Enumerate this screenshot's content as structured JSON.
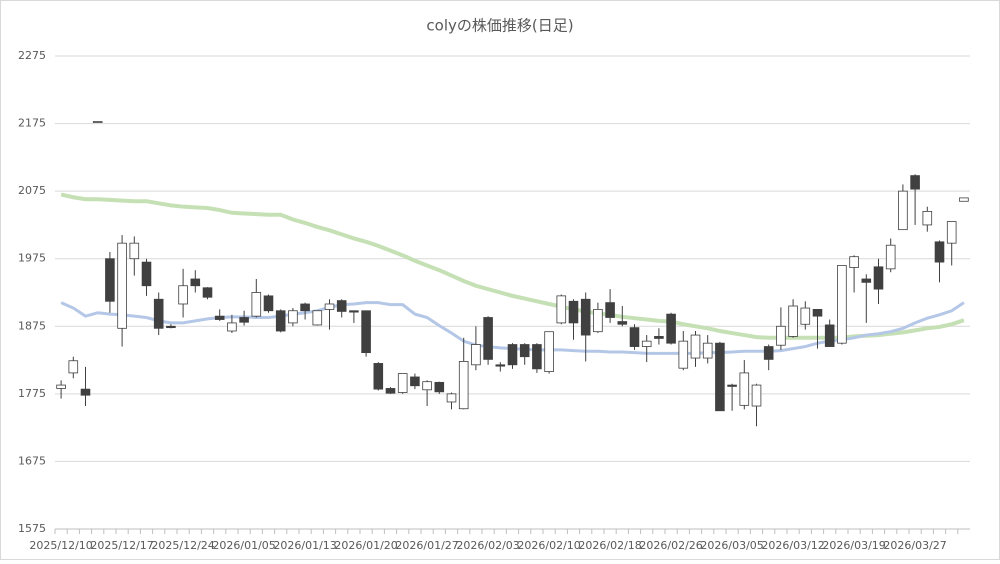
{
  "chart_data": {
    "type": "candlestick",
    "title": "colyの株価推移(日足)",
    "categories": [
      "2025/12/10",
      null,
      null,
      null,
      null,
      "2025/12/17",
      null,
      null,
      null,
      null,
      "2025/12/24",
      null,
      null,
      null,
      null,
      "2026/01/05",
      null,
      null,
      null,
      null,
      "2026/01/13",
      null,
      null,
      null,
      null,
      "2026/01/20",
      null,
      null,
      null,
      null,
      "2026/01/27",
      null,
      null,
      null,
      null,
      "2026/02/03",
      null,
      null,
      null,
      null,
      "2026/02/10",
      null,
      null,
      null,
      null,
      "2026/02/18",
      null,
      null,
      null,
      null,
      "2026/02/26",
      null,
      null,
      null,
      null,
      "2026/03/05",
      null,
      null,
      null,
      null,
      "2026/03/12",
      null,
      null,
      null,
      null,
      "2026/03/19",
      null,
      null,
      null,
      null,
      "2026/03/27",
      null,
      null,
      null,
      null
    ],
    "open": [
      1783,
      1806,
      1782,
      2178,
      1975,
      1872,
      1975,
      1970,
      1915,
      1875,
      1908,
      1945,
      1932,
      1890,
      1868,
      1888,
      1890,
      1920,
      1898,
      1880,
      1908,
      1877,
      1900,
      1913,
      1898,
      1898,
      1820,
      1783,
      1777,
      1800,
      1781,
      1792,
      1763,
      1753,
      1818,
      1888,
      1818,
      1848,
      1848,
      1848,
      1808,
      1880,
      1912,
      1915,
      1867,
      1910,
      1882,
      1873,
      1845,
      1860,
      1893,
      1813,
      1828,
      1828,
      1850,
      1788,
      1758,
      1757,
      1845,
      1847,
      1860,
      1878,
      1900,
      1877,
      1850,
      1962,
      1945,
      1963,
      1960,
      2018,
      2098,
      2025,
      2000,
      1998,
      2060
    ],
    "high": [
      1795,
      1830,
      1815,
      2178,
      1985,
      2010,
      2008,
      1975,
      1925,
      1878,
      1960,
      1958,
      1933,
      1900,
      1892,
      1898,
      1945,
      1922,
      1900,
      1902,
      1910,
      1898,
      1915,
      1915,
      1898,
      1898,
      1822,
      1785,
      1805,
      1805,
      1795,
      1793,
      1777,
      1858,
      1875,
      1890,
      1822,
      1850,
      1850,
      1850,
      1867,
      1922,
      1915,
      1925,
      1910,
      1930,
      1905,
      1878,
      1862,
      1872,
      1895,
      1868,
      1868,
      1862,
      1852,
      1790,
      1825,
      1790,
      1848,
      1903,
      1915,
      1912,
      1900,
      1885,
      1965,
      1980,
      1952,
      1975,
      2005,
      2085,
      2100,
      2052,
      2002,
      2030,
      2065
    ],
    "low": [
      1768,
      1798,
      1757,
      2178,
      1895,
      1845,
      1950,
      1920,
      1862,
      1872,
      1888,
      1925,
      1915,
      1883,
      1865,
      1876,
      1888,
      1895,
      1866,
      1875,
      1885,
      1876,
      1870,
      1888,
      1880,
      1830,
      1780,
      1775,
      1775,
      1782,
      1757,
      1775,
      1752,
      1752,
      1810,
      1818,
      1808,
      1812,
      1818,
      1806,
      1805,
      1878,
      1855,
      1823,
      1865,
      1880,
      1875,
      1840,
      1822,
      1848,
      1848,
      1810,
      1815,
      1820,
      1750,
      1750,
      1752,
      1727,
      1810,
      1840,
      1858,
      1870,
      1842,
      1845,
      1848,
      1925,
      1880,
      1908,
      1955,
      2018,
      2025,
      2015,
      1940,
      1965,
      2060
    ],
    "close": [
      1788,
      1824,
      1773,
      2178,
      1912,
      1998,
      1998,
      1935,
      1872,
      1873,
      1935,
      1935,
      1918,
      1885,
      1880,
      1881,
      1925,
      1898,
      1868,
      1898,
      1898,
      1898,
      1908,
      1897,
      1896,
      1836,
      1782,
      1776,
      1805,
      1787,
      1793,
      1778,
      1775,
      1823,
      1848,
      1826,
      1816,
      1818,
      1830,
      1812,
      1867,
      1920,
      1880,
      1862,
      1900,
      1888,
      1878,
      1845,
      1853,
      1857,
      1850,
      1853,
      1862,
      1850,
      1750,
      1786,
      1806,
      1788,
      1826,
      1875,
      1905,
      1902,
      1890,
      1845,
      1965,
      1978,
      1940,
      1930,
      1995,
      2075,
      2078,
      2045,
      1970,
      2030,
      2065
    ],
    "up_color": "#ffffff",
    "down_color": "#404040",
    "edge_color": "#404040",
    "lines": [
      {
        "color": "#c5e0b4",
        "values": [
          2070,
          2066,
          2063,
          2063,
          2062,
          2061,
          2060,
          2060,
          2057,
          2054,
          2052,
          2051,
          2050,
          2047,
          2043,
          2042,
          2041,
          2040,
          2040,
          2033,
          2028,
          2022,
          2017,
          2011,
          2005,
          2000,
          1994,
          1987,
          1980,
          1972,
          1965,
          1958,
          1950,
          1942,
          1935,
          1930,
          1925,
          1920,
          1916,
          1912,
          1908,
          1904,
          1900,
          1897,
          1894,
          1892,
          1889,
          1887,
          1885,
          1883,
          1882,
          1878,
          1875,
          1872,
          1868,
          1865,
          1862,
          1859,
          1858,
          1858,
          1858,
          1858,
          1858,
          1858,
          1858,
          1860,
          1861,
          1862,
          1864,
          1866,
          1869,
          1872,
          1874,
          1878,
          1884
        ]
      },
      {
        "color": "#b4c7e7",
        "values": [
          1910,
          1902,
          1890,
          1895,
          1893,
          1892,
          1890,
          1888,
          1883,
          1880,
          1880,
          1883,
          1886,
          1888,
          1889,
          1889,
          1888,
          1888,
          1890,
          1893,
          1895,
          1898,
          1903,
          1907,
          1908,
          1910,
          1910,
          1907,
          1907,
          1893,
          1888,
          1876,
          1865,
          1853,
          1847,
          1845,
          1843,
          1842,
          1841,
          1840,
          1840,
          1840,
          1839,
          1838,
          1838,
          1837,
          1837,
          1836,
          1835,
          1835,
          1835,
          1835,
          1835,
          1836,
          1836,
          1837,
          1838,
          1838,
          1838,
          1839,
          1842,
          1845,
          1850,
          1853,
          1855,
          1858,
          1862,
          1864,
          1867,
          1872,
          1880,
          1887,
          1892,
          1898,
          1910
        ]
      }
    ],
    "ylim": [
      1575,
      2275
    ],
    "yticks": [
      1575,
      1675,
      1775,
      1875,
      1975,
      2075,
      2175,
      2275
    ],
    "grid": true
  }
}
